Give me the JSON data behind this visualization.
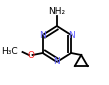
{
  "bg_color": "#ffffff",
  "line_color": "#000000",
  "N_color": "#6060ff",
  "O_color": "#ff2020",
  "bond_lw": 1.3,
  "n_text": "N",
  "o_text": "O",
  "nh2_text": "NH₂",
  "ch3_text": "H₃C"
}
